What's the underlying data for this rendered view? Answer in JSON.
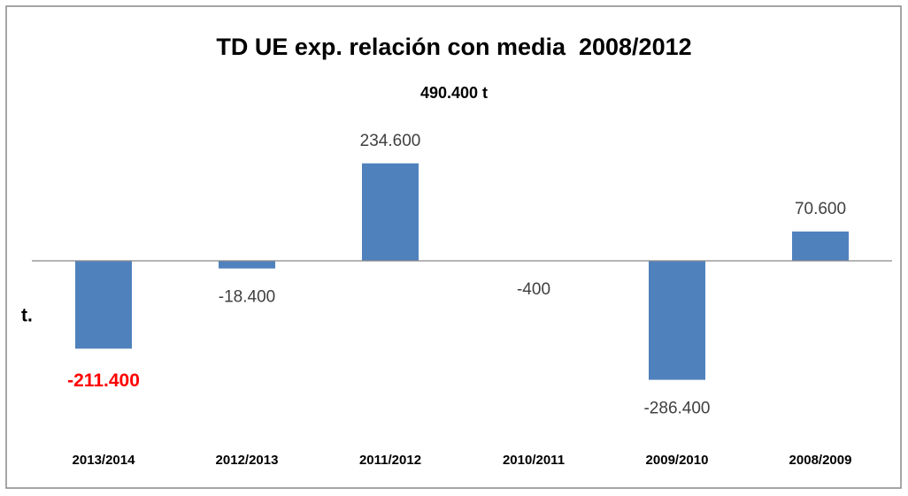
{
  "chart_data": {
    "type": "bar",
    "title": "TD UE exp. relación con media  2008/2012",
    "subtitle": "490.400 t",
    "y_label": "t.",
    "categories": [
      "2013/2014",
      "2012/2013",
      "2011/2012",
      "2010/2011",
      "2009/2010",
      "2008/2009"
    ],
    "values": [
      -211400,
      -18400,
      234600,
      -400,
      -286400,
      70600
    ],
    "value_labels": [
      "-211.400",
      "-18.400",
      "234.600",
      "-400",
      "-286.400",
      "70.600"
    ],
    "value_label_colors": [
      "#ff0000",
      "#404040",
      "#404040",
      "#404040",
      "#404040",
      "#404040"
    ],
    "value_label_weights": [
      "bold",
      "normal",
      "normal",
      "normal",
      "normal",
      "normal"
    ],
    "color": "#4f81bd",
    "ylim": [
      -300000,
      300000
    ],
    "grid": false
  }
}
